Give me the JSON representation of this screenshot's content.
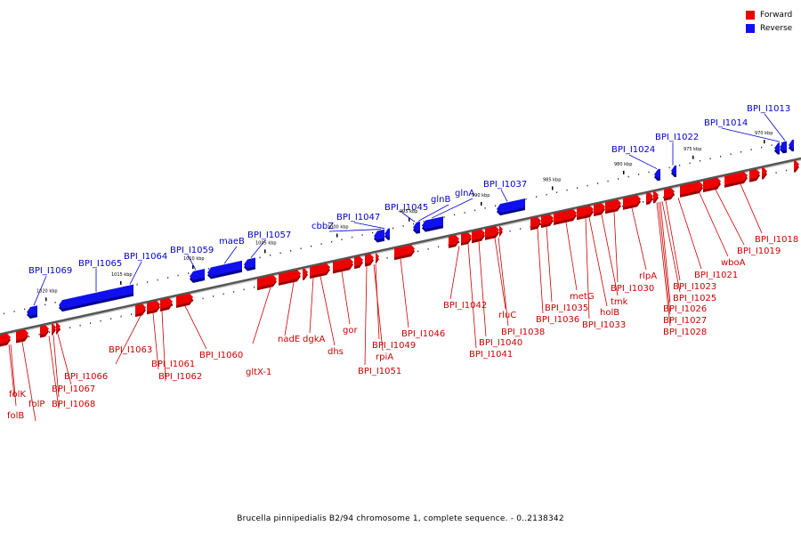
{
  "legend": {
    "forward_label": "Forward",
    "reverse_label": "Reverse",
    "forward_color": "#ee0000",
    "reverse_color": "#1010ee"
  },
  "caption": "Brucella pinnipedialis B2/94 chromosome 1, complete sequence. - 0..2138342",
  "scale_labels": [
    "970 kbp",
    "975 kbp",
    "980 kbp",
    "985 kbp",
    "990 kbp",
    "995 kbp",
    "1000 kbp",
    "1005 kbp",
    "1010 kbp",
    "1015 kbp",
    "1020 kbp"
  ],
  "forward_genes": [
    "folB",
    "folK",
    "folP",
    "BPI_I1068",
    "BPI_I1067",
    "BPI_I1066",
    "BPI_I1063",
    "BPI_I1062",
    "BPI_I1061",
    "BPI_I1060",
    "gltX-1",
    "nadE",
    "dgkA",
    "dhs",
    "gor",
    "BPI_I1051",
    "rpiA",
    "BPI_I1049",
    "BPI_I1046",
    "BPI_I1042",
    "BPI_I1041",
    "BPI_I1040",
    "BPI_I1038",
    "rluC",
    "BPI_I1036",
    "BPI_I1035",
    "metG",
    "BPI_I1033",
    "holB",
    "tmk",
    "BPI_I1030",
    "rlpA",
    "BPI_I1028",
    "BPI_I1027",
    "BPI_I1026",
    "BPI_I1025",
    "BPI_I1023",
    "BPI_I1021",
    "wboA",
    "BPI_I1019",
    "BPI_I1018"
  ],
  "reverse_genes": [
    "BPI_I1069",
    "BPI_I1065",
    "BPI_I1064",
    "BPI_I1059",
    "maeB",
    "BPI_I1057",
    "cbbZ",
    "BPI_I1047",
    "BPI_I1045",
    "glnB",
    "glnA",
    "BPI_I1037",
    "BPI_I1024",
    "BPI_I1022",
    "BPI_I1014",
    "BPI_I1013"
  ]
}
